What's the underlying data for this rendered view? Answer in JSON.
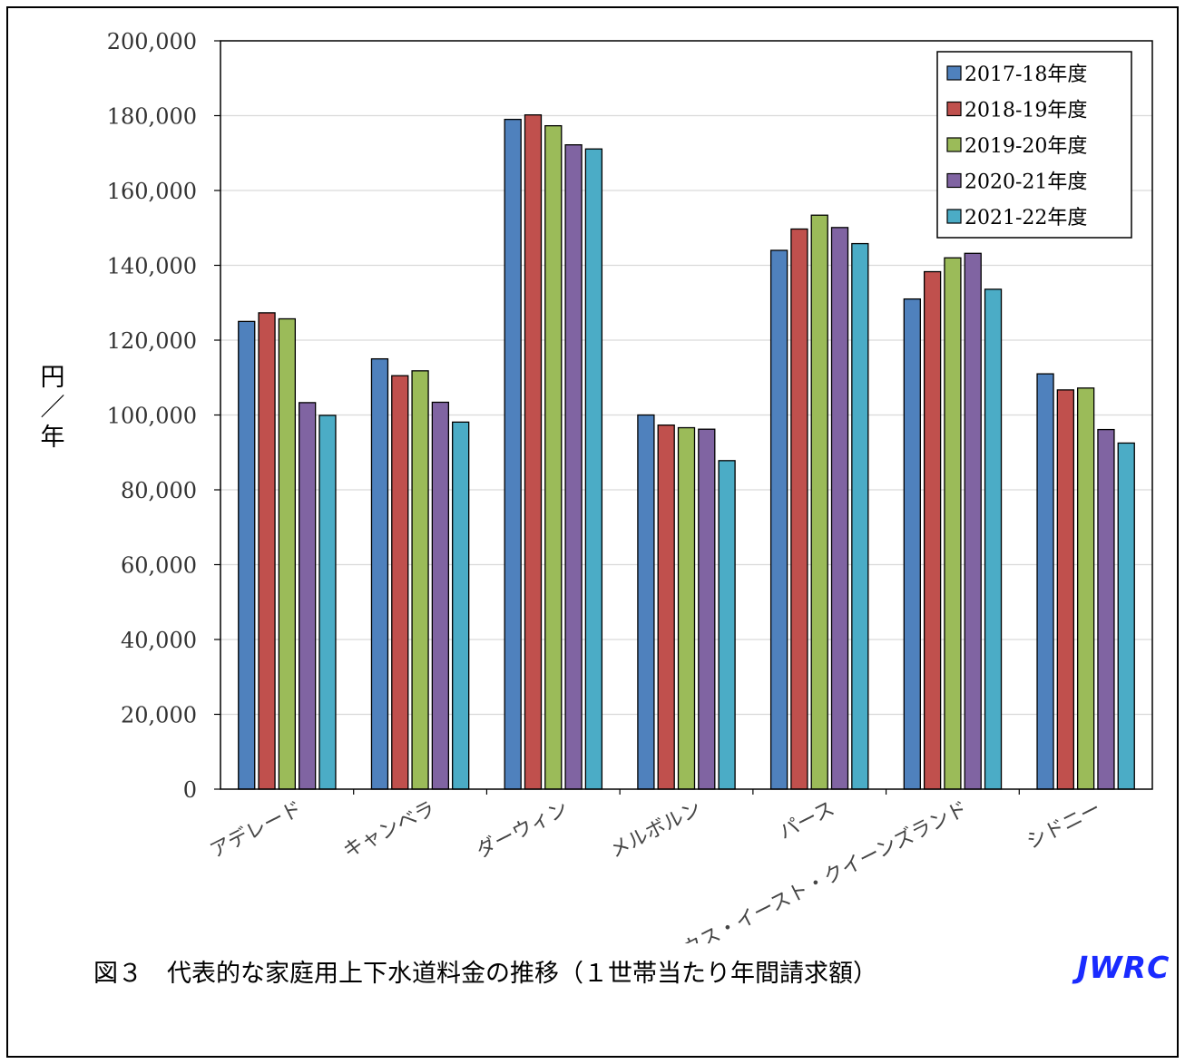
{
  "chart_data": {
    "type": "bar",
    "ylabel": "円／年",
    "ylim": [
      0,
      200000
    ],
    "yticks": [
      0,
      20000,
      40000,
      60000,
      80000,
      100000,
      120000,
      140000,
      160000,
      180000,
      200000
    ],
    "ytick_labels": [
      "0",
      "20,000",
      "40,000",
      "60,000",
      "80,000",
      "100,000",
      "120,000",
      "140,000",
      "160,000",
      "180,000",
      "200,000"
    ],
    "grid": "horizontal",
    "legend_position": "top-right",
    "categories": [
      "アデレード",
      "キャンベラ",
      "ダーウィン",
      "メルボルン",
      "パース",
      "サウス・イースト・クイーンズランド",
      "シドニー"
    ],
    "series": [
      {
        "name": "2017-18年度",
        "color": "#4f81bd",
        "values": [
          125000,
          115000,
          179000,
          100000,
          144000,
          131000,
          111000
        ]
      },
      {
        "name": "2018-19年度",
        "color": "#c0504d",
        "values": [
          127300,
          110500,
          180200,
          97300,
          149700,
          138300,
          106700
        ]
      },
      {
        "name": "2019-20年度",
        "color": "#9bbb59",
        "values": [
          125700,
          111800,
          177300,
          96600,
          153400,
          142000,
          107200
        ]
      },
      {
        "name": "2020-21年度",
        "color": "#8064a2",
        "values": [
          103300,
          103400,
          172200,
          96200,
          150100,
          143200,
          96100
        ]
      },
      {
        "name": "2021-22年度",
        "color": "#4bacc6",
        "values": [
          99900,
          98100,
          171100,
          87800,
          145800,
          133600,
          92500
        ]
      }
    ]
  },
  "caption": "図３　代表的な家庭用上下水道料金の推移（１世帯当たり年間請求額）",
  "logo": "JWRC"
}
